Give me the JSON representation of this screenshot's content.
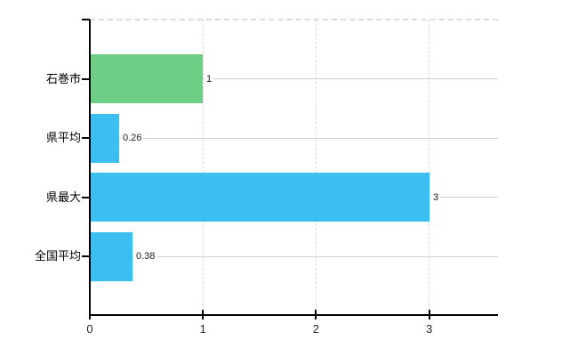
{
  "chart_data": {
    "type": "bar",
    "orientation": "horizontal",
    "title": "",
    "xlabel": "",
    "ylabel": "",
    "categories": [
      "石巻市",
      "県平均",
      "県最大",
      "全国平均"
    ],
    "values": [
      1,
      0.26,
      3,
      0.38
    ],
    "value_labels": [
      "1",
      "0.26",
      "3",
      "0.38"
    ],
    "bar_colors": [
      "#6FCE85",
      "#3DBEF0",
      "#3DBEF0",
      "#3DBEF0"
    ],
    "x_ticks": [
      0,
      1,
      2,
      3
    ],
    "x_tick_labels": [
      "0",
      "1",
      "2",
      "3"
    ],
    "xlim": [
      0,
      3.6
    ],
    "legend": "none",
    "grid": {
      "horizontal": "solid line at each category center, right of value label",
      "vertical": "dashed lines at x=1,2,3",
      "top_border": "dashed"
    }
  },
  "colors": {
    "background": "#FFFFFF",
    "bar_blue": "#3DBEF0",
    "bar_green": "#6FCE85",
    "h_gridline": "#CDD4CA",
    "v_gridline": "#D9D9D9",
    "axis": "#000000",
    "value_label_text": "#1A1A1A",
    "axis_label_text": "#202430",
    "category_label_text": "#000000"
  }
}
